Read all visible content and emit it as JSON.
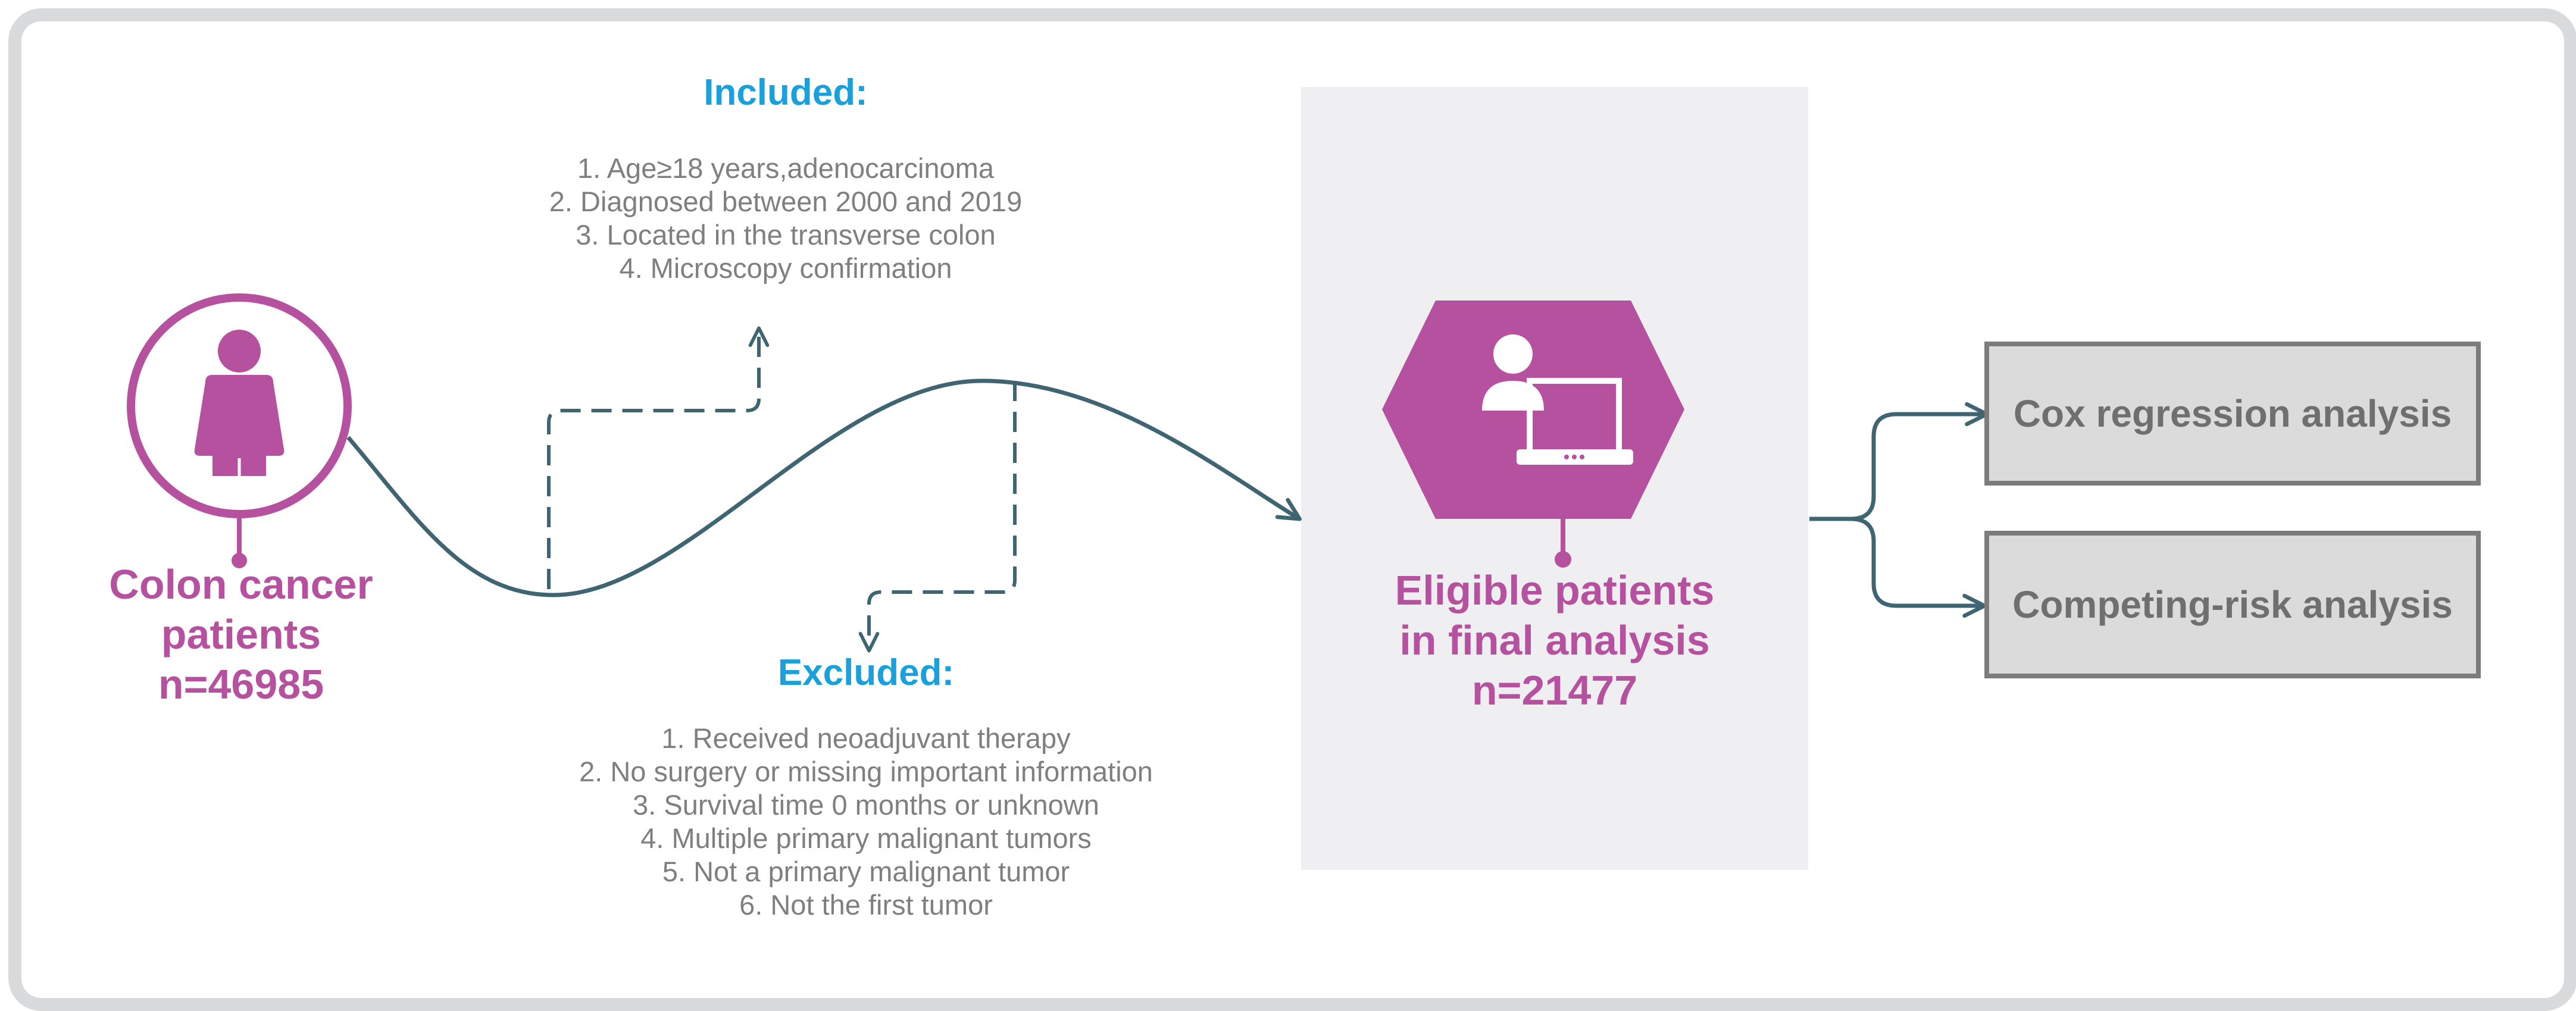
{
  "colors": {
    "magenta": "#b5519e",
    "blue": "#1aa1dc",
    "teal": "#3f6472",
    "gray_text": "#7f7f7f",
    "panel": "#efeff2",
    "box_fill": "#dbdbdb",
    "box_border": "#7c7c7c",
    "frame": "#d9dadc"
  },
  "icons": {
    "start": "person-icon",
    "eligible": "doctor-at-computer-icon"
  },
  "start_node": {
    "line1": "Colon cancer",
    "line2": "patients",
    "count": "n=46985"
  },
  "included": {
    "heading": "Included:",
    "items": [
      "1. Age≥18 years,adenocarcinoma",
      "2. Diagnosed between 2000 and 2019",
      "3. Located in the transverse colon",
      "4. Microscopy confirmation"
    ]
  },
  "excluded": {
    "heading": "Excluded:",
    "items": [
      "1. Received neoadjuvant therapy",
      "2. No surgery or missing important information",
      "3. Survival time 0 months or unknown",
      "4. Multiple primary malignant tumors",
      "5. Not a primary malignant tumor",
      "6. Not the first tumor"
    ]
  },
  "eligible": {
    "line1": "Eligible patients",
    "line2": "in final analysis",
    "count": "n=21477"
  },
  "analyses": [
    "Cox regression analysis",
    "Competing-risk analysis"
  ]
}
